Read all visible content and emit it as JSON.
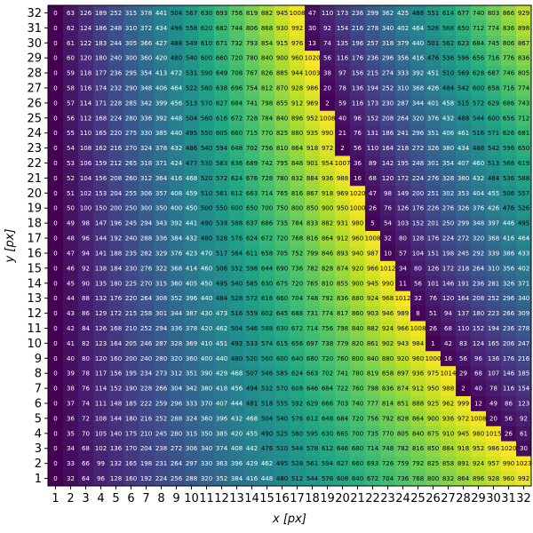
{
  "chart_data": {
    "type": "heatmap",
    "title": "",
    "xlabel": "x [px]",
    "ylabel": "y [px]",
    "x": [
      1,
      2,
      3,
      4,
      5,
      6,
      7,
      8,
      9,
      10,
      11,
      12,
      13,
      14,
      15,
      16,
      17,
      18,
      19,
      20,
      21,
      22,
      23,
      24,
      25,
      26,
      27,
      28,
      29,
      30,
      31,
      32
    ],
    "y": [
      1,
      2,
      3,
      4,
      5,
      6,
      7,
      8,
      9,
      10,
      11,
      12,
      13,
      14,
      15,
      16,
      17,
      18,
      19,
      20,
      21,
      22,
      23,
      24,
      25,
      26,
      27,
      28,
      29,
      30,
      31,
      32
    ],
    "xlim": [
      0.5,
      32.5
    ],
    "ylim": [
      0.5,
      32.5
    ],
    "value_range": [
      0,
      1023
    ],
    "colormap": "viridis",
    "formula": "v = ((x - 1) * 32 + (x - 1) * (y - 1)) mod 1024"
  }
}
